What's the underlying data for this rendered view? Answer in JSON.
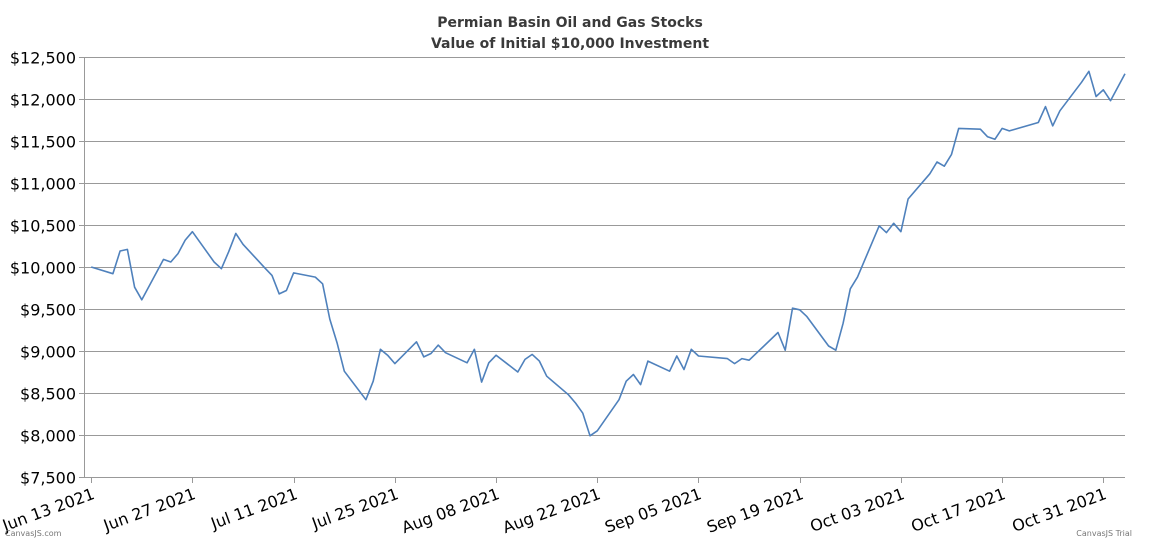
{
  "chart_data": {
    "type": "line",
    "title": "Permian Basin Oil and Gas Stocks",
    "subtitle": "Value of Initial $10,000 Investment",
    "xlabel": "",
    "ylabel": "",
    "ylim": [
      7500,
      12500
    ],
    "xlim": [
      "2021-06-12",
      "2021-11-03"
    ],
    "grid": true,
    "legend": "none",
    "series_color": "#4f81bc",
    "y_ticks": [
      {
        "value": 12500,
        "label": "$12,500"
      },
      {
        "value": 12000,
        "label": "$12,000"
      },
      {
        "value": 11500,
        "label": "$11,500"
      },
      {
        "value": 11000,
        "label": "$11,000"
      },
      {
        "value": 10500,
        "label": "$10,500"
      },
      {
        "value": 10000,
        "label": "$10,000"
      },
      {
        "value": 9500,
        "label": "$9,500"
      },
      {
        "value": 9000,
        "label": "$9,000"
      },
      {
        "value": 8500,
        "label": "$8,500"
      },
      {
        "value": 8000,
        "label": "$8,000"
      },
      {
        "value": 7500,
        "label": "$7,500"
      }
    ],
    "x_ticks": [
      {
        "date": "2021-06-13",
        "label": "Jun 13 2021"
      },
      {
        "date": "2021-06-27",
        "label": "Jun 27 2021"
      },
      {
        "date": "2021-07-11",
        "label": "Jul 11 2021"
      },
      {
        "date": "2021-07-25",
        "label": "Jul 25 2021"
      },
      {
        "date": "2021-08-08",
        "label": "Aug 08 2021"
      },
      {
        "date": "2021-08-22",
        "label": "Aug 22 2021"
      },
      {
        "date": "2021-09-05",
        "label": "Sep 05 2021"
      },
      {
        "date": "2021-09-19",
        "label": "Sep 19 2021"
      },
      {
        "date": "2021-10-03",
        "label": "Oct 03 2021"
      },
      {
        "date": "2021-10-17",
        "label": "Oct 17 2021"
      },
      {
        "date": "2021-10-31",
        "label": "Oct 31 2021"
      }
    ],
    "series": [
      {
        "points": [
          {
            "x": "2021-06-13",
            "y": 10000
          },
          {
            "x": "2021-06-16",
            "y": 9920
          },
          {
            "x": "2021-06-17",
            "y": 10190
          },
          {
            "x": "2021-06-18",
            "y": 10210
          },
          {
            "x": "2021-06-19",
            "y": 9760
          },
          {
            "x": "2021-06-20",
            "y": 9610
          },
          {
            "x": "2021-06-23",
            "y": 10090
          },
          {
            "x": "2021-06-24",
            "y": 10060
          },
          {
            "x": "2021-06-25",
            "y": 10160
          },
          {
            "x": "2021-06-26",
            "y": 10320
          },
          {
            "x": "2021-06-27",
            "y": 10420
          },
          {
            "x": "2021-06-30",
            "y": 10060
          },
          {
            "x": "2021-07-01",
            "y": 9980
          },
          {
            "x": "2021-07-02",
            "y": 10180
          },
          {
            "x": "2021-07-03",
            "y": 10400
          },
          {
            "x": "2021-07-04",
            "y": 10270
          },
          {
            "x": "2021-07-07",
            "y": 9990
          },
          {
            "x": "2021-07-08",
            "y": 9900
          },
          {
            "x": "2021-07-09",
            "y": 9680
          },
          {
            "x": "2021-07-10",
            "y": 9720
          },
          {
            "x": "2021-07-11",
            "y": 9930
          },
          {
            "x": "2021-07-14",
            "y": 9880
          },
          {
            "x": "2021-07-15",
            "y": 9800
          },
          {
            "x": "2021-07-16",
            "y": 9380
          },
          {
            "x": "2021-07-17",
            "y": 9100
          },
          {
            "x": "2021-07-18",
            "y": 8760
          },
          {
            "x": "2021-07-21",
            "y": 8420
          },
          {
            "x": "2021-07-22",
            "y": 8640
          },
          {
            "x": "2021-07-23",
            "y": 9020
          },
          {
            "x": "2021-07-24",
            "y": 8950
          },
          {
            "x": "2021-07-25",
            "y": 8850
          },
          {
            "x": "2021-07-28",
            "y": 9110
          },
          {
            "x": "2021-07-29",
            "y": 8930
          },
          {
            "x": "2021-07-30",
            "y": 8970
          },
          {
            "x": "2021-07-31",
            "y": 9070
          },
          {
            "x": "2021-08-01",
            "y": 8980
          },
          {
            "x": "2021-08-04",
            "y": 8860
          },
          {
            "x": "2021-08-05",
            "y": 9020
          },
          {
            "x": "2021-08-06",
            "y": 8630
          },
          {
            "x": "2021-08-07",
            "y": 8860
          },
          {
            "x": "2021-08-08",
            "y": 8950
          },
          {
            "x": "2021-08-11",
            "y": 8750
          },
          {
            "x": "2021-08-12",
            "y": 8900
          },
          {
            "x": "2021-08-13",
            "y": 8960
          },
          {
            "x": "2021-08-14",
            "y": 8880
          },
          {
            "x": "2021-08-15",
            "y": 8700
          },
          {
            "x": "2021-08-18",
            "y": 8480
          },
          {
            "x": "2021-08-19",
            "y": 8380
          },
          {
            "x": "2021-08-20",
            "y": 8260
          },
          {
            "x": "2021-08-21",
            "y": 7990
          },
          {
            "x": "2021-08-22",
            "y": 8050
          },
          {
            "x": "2021-08-25",
            "y": 8420
          },
          {
            "x": "2021-08-26",
            "y": 8640
          },
          {
            "x": "2021-08-27",
            "y": 8720
          },
          {
            "x": "2021-08-28",
            "y": 8600
          },
          {
            "x": "2021-08-29",
            "y": 8880
          },
          {
            "x": "2021-09-01",
            "y": 8760
          },
          {
            "x": "2021-09-02",
            "y": 8940
          },
          {
            "x": "2021-09-03",
            "y": 8780
          },
          {
            "x": "2021-09-04",
            "y": 9020
          },
          {
            "x": "2021-09-05",
            "y": 8940
          },
          {
            "x": "2021-09-09",
            "y": 8910
          },
          {
            "x": "2021-09-10",
            "y": 8850
          },
          {
            "x": "2021-09-11",
            "y": 8910
          },
          {
            "x": "2021-09-12",
            "y": 8890
          },
          {
            "x": "2021-09-16",
            "y": 9220
          },
          {
            "x": "2021-09-17",
            "y": 9010
          },
          {
            "x": "2021-09-18",
            "y": 9510
          },
          {
            "x": "2021-09-19",
            "y": 9490
          },
          {
            "x": "2021-09-20",
            "y": 9410
          },
          {
            "x": "2021-09-23",
            "y": 9060
          },
          {
            "x": "2021-09-24",
            "y": 9010
          },
          {
            "x": "2021-09-25",
            "y": 9330
          },
          {
            "x": "2021-09-26",
            "y": 9740
          },
          {
            "x": "2021-09-27",
            "y": 9880
          },
          {
            "x": "2021-09-30",
            "y": 10490
          },
          {
            "x": "2021-10-01",
            "y": 10410
          },
          {
            "x": "2021-10-02",
            "y": 10520
          },
          {
            "x": "2021-10-03",
            "y": 10420
          },
          {
            "x": "2021-10-04",
            "y": 10810
          },
          {
            "x": "2021-10-07",
            "y": 11110
          },
          {
            "x": "2021-10-08",
            "y": 11250
          },
          {
            "x": "2021-10-09",
            "y": 11200
          },
          {
            "x": "2021-10-10",
            "y": 11340
          },
          {
            "x": "2021-10-11",
            "y": 11650
          },
          {
            "x": "2021-10-14",
            "y": 11640
          },
          {
            "x": "2021-10-15",
            "y": 11550
          },
          {
            "x": "2021-10-16",
            "y": 11520
          },
          {
            "x": "2021-10-17",
            "y": 11650
          },
          {
            "x": "2021-10-18",
            "y": 11620
          },
          {
            "x": "2021-10-22",
            "y": 11720
          },
          {
            "x": "2021-10-23",
            "y": 11910
          },
          {
            "x": "2021-10-24",
            "y": 11680
          },
          {
            "x": "2021-10-25",
            "y": 11860
          },
          {
            "x": "2021-10-28",
            "y": 12200
          },
          {
            "x": "2021-10-29",
            "y": 12330
          },
          {
            "x": "2021-10-30",
            "y": 12030
          },
          {
            "x": "2021-10-31",
            "y": 12110
          },
          {
            "x": "2021-11-01",
            "y": 11980
          },
          {
            "x": "2021-11-03",
            "y": 12300
          }
        ]
      }
    ]
  },
  "credits": {
    "left": "CanvasJS.com",
    "right": "CanvasJS Trial"
  }
}
